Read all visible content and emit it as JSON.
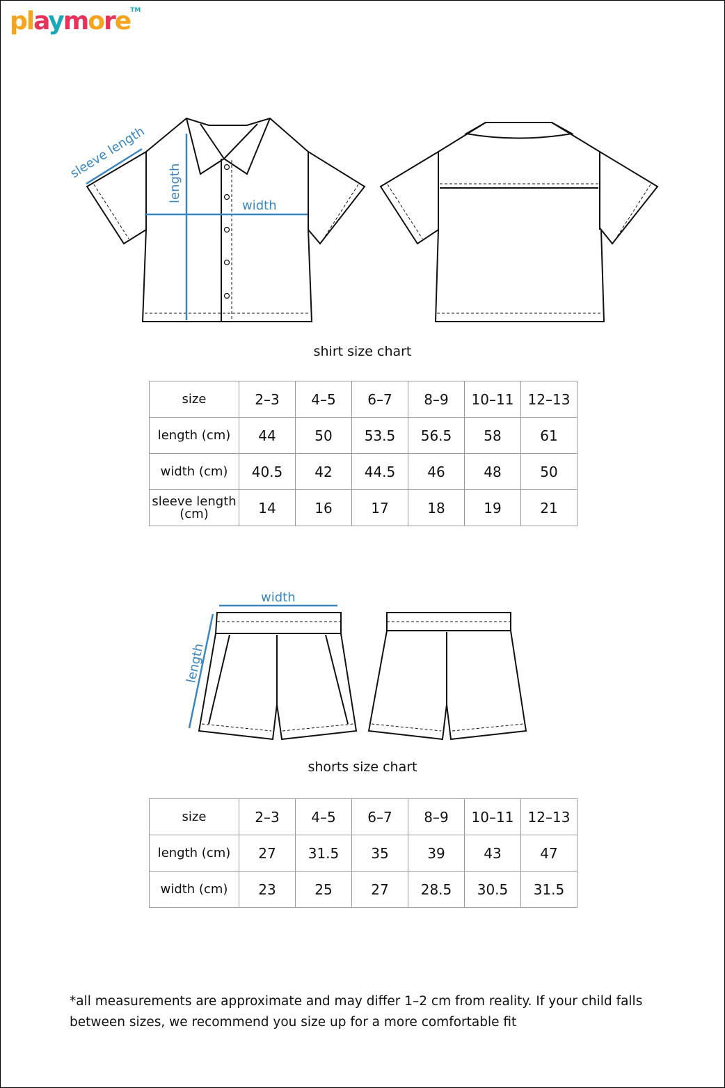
{
  "brand": {
    "logo_text": "playmore",
    "trademark": "TM",
    "colors": [
      "#f7a41d",
      "#e8315b",
      "#1aa9b8"
    ]
  },
  "shirt_diagram": {
    "labels": {
      "sleeve": "sleeve length",
      "length": "length",
      "width": "width"
    }
  },
  "shirt_chart": {
    "title": "shirt size chart",
    "header": [
      "size",
      "2–3",
      "4–5",
      "6–7",
      "8–9",
      "10–11",
      "12–13"
    ],
    "rows": [
      [
        "length (cm)",
        "44",
        "50",
        "53.5",
        "56.5",
        "58",
        "61"
      ],
      [
        "width (cm)",
        "40.5",
        "42",
        "44.5",
        "46",
        "48",
        "50"
      ],
      [
        "sleeve length (cm)",
        "14",
        "16",
        "17",
        "18",
        "19",
        "21"
      ]
    ]
  },
  "shorts_diagram": {
    "labels": {
      "width": "width",
      "length": "length"
    }
  },
  "shorts_chart": {
    "title": "shorts size chart",
    "header": [
      "size",
      "2–3",
      "4–5",
      "6–7",
      "8–9",
      "10–11",
      "12–13"
    ],
    "rows": [
      [
        "length (cm)",
        "27",
        "31.5",
        "35",
        "39",
        "43",
        "47"
      ],
      [
        "width (cm)",
        "23",
        "25",
        "27",
        "28.5",
        "30.5",
        "31.5"
      ]
    ]
  },
  "footnote": "*all measurements are approximate and may differ 1–2 cm  from reality. If your child falls between sizes, we recommend you size up for a more comfortable fit",
  "accent_color": "#3a86c0"
}
